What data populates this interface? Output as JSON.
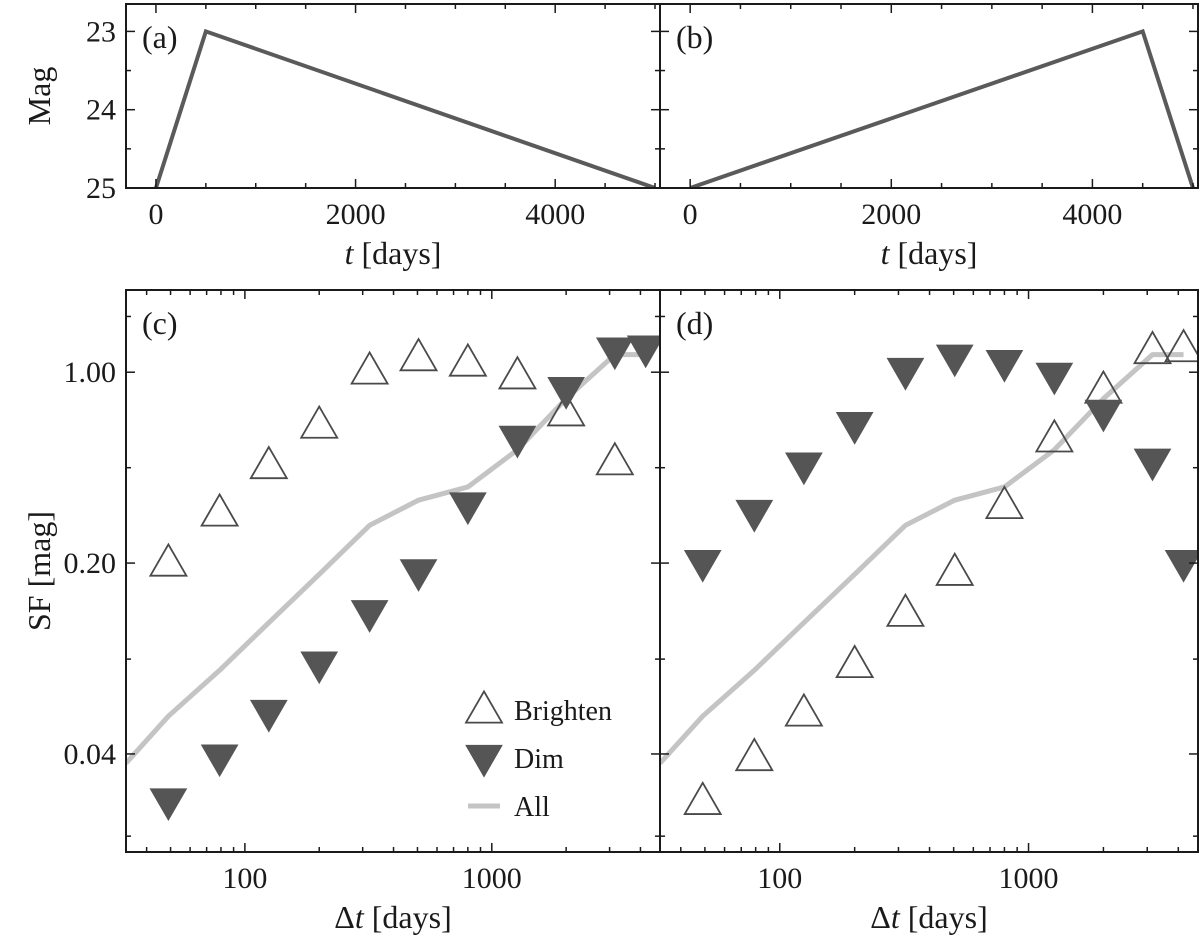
{
  "colors": {
    "curve": "#5a5a5a",
    "all_line": "#c4c4c4",
    "marker_edge": "#4a4a4a",
    "dim_fill": "#555555",
    "axis": "#1a1a1a"
  },
  "legend_position": "lower-right",
  "chart_data": [
    {
      "id": "a",
      "type": "line",
      "panel_label": "(a)",
      "xlabel_var": "t",
      "xlabel_unit": " [days]",
      "ylabel": "Mag",
      "xlim": [
        -300,
        5050
      ],
      "ylim": [
        25,
        22.65
      ],
      "y_inverted": true,
      "xticks": [
        0,
        2000,
        4000
      ],
      "xtick_labels": [
        "0",
        "2000",
        "4000"
      ],
      "yticks": [
        23,
        24,
        25
      ],
      "ytick_labels": [
        "23",
        "24",
        "25"
      ],
      "series": [
        {
          "x": [
            0,
            500,
            5000
          ],
          "y": [
            25,
            23,
            25
          ]
        }
      ]
    },
    {
      "id": "b",
      "type": "line",
      "panel_label": "(b)",
      "xlabel_var": "t",
      "xlabel_unit": " [days]",
      "xlim": [
        -300,
        5050
      ],
      "ylim": [
        25,
        22.65
      ],
      "y_inverted": true,
      "xticks": [
        0,
        2000,
        4000
      ],
      "xtick_labels": [
        "0",
        "2000",
        "4000"
      ],
      "series": [
        {
          "x": [
            0,
            4500,
            5000
          ],
          "y": [
            25,
            23,
            25
          ]
        }
      ]
    },
    {
      "id": "c",
      "type": "scatter",
      "panel_label": "(c)",
      "xlabel_var": "Δt",
      "xlabel_unit": " [days]",
      "ylabel": "SF [mag]",
      "xscale": "log",
      "yscale": "log",
      "xlim": [
        33,
        4800
      ],
      "ylim": [
        0.0175,
        2.0
      ],
      "xticks": [
        100,
        1000
      ],
      "xtick_labels": [
        "100",
        "1000"
      ],
      "yticks": [
        0.04,
        0.2,
        1.0
      ],
      "ytick_labels": [
        "0.04",
        "0.20",
        "1.00"
      ],
      "series": [
        {
          "name": "Brighten",
          "marker": "triangle-up-open",
          "x": [
            49,
            79,
            125,
            200,
            320,
            505,
            800,
            1270,
            2000,
            3150
          ],
          "y": [
            0.2,
            0.305,
            0.455,
            0.64,
            1.01,
            1.13,
            1.08,
            0.97,
            0.71,
            0.47
          ]
        },
        {
          "name": "Dim",
          "marker": "triangle-down-filled",
          "x": [
            49,
            79,
            125,
            200,
            320,
            505,
            800,
            1270,
            2000,
            3150,
            4200
          ],
          "y": [
            0.0268,
            0.0388,
            0.0565,
            0.085,
            0.131,
            0.185,
            0.325,
            0.57,
            0.86,
            1.2,
            1.22
          ]
        },
        {
          "name": "All",
          "marker": "line",
          "x": [
            33,
            49,
            79,
            125,
            200,
            320,
            505,
            800,
            1270,
            2000,
            3150,
            4200
          ],
          "y": [
            0.037,
            0.055,
            0.081,
            0.121,
            0.182,
            0.275,
            0.34,
            0.38,
            0.52,
            0.8,
            1.16,
            1.16
          ]
        }
      ]
    },
    {
      "id": "d",
      "type": "scatter",
      "panel_label": "(d)",
      "xlabel_var": "Δt",
      "xlabel_unit": " [days]",
      "xscale": "log",
      "yscale": "log",
      "xlim": [
        33,
        4800
      ],
      "ylim": [
        0.0175,
        2.0
      ],
      "xticks": [
        100,
        1000
      ],
      "xtick_labels": [
        "100",
        "1000"
      ],
      "series": [
        {
          "name": "Brighten",
          "marker": "triangle-up-open",
          "x": [
            49,
            79,
            125,
            200,
            320,
            505,
            800,
            1270,
            2000,
            3150,
            4200
          ],
          "y": [
            0.0268,
            0.0388,
            0.0565,
            0.085,
            0.131,
            0.185,
            0.325,
            0.57,
            0.86,
            1.2,
            1.22
          ]
        },
        {
          "name": "Dim",
          "marker": "triangle-down-filled",
          "x": [
            49,
            79,
            125,
            200,
            320,
            505,
            800,
            1270,
            2000,
            3150,
            4200
          ],
          "y": [
            0.2,
            0.305,
            0.455,
            0.64,
            1.01,
            1.13,
            1.08,
            0.97,
            0.71,
            0.47,
            0.2
          ]
        },
        {
          "name": "All",
          "marker": "line",
          "x": [
            33,
            49,
            79,
            125,
            200,
            320,
            505,
            800,
            1270,
            2000,
            3150,
            4200
          ],
          "y": [
            0.037,
            0.055,
            0.081,
            0.121,
            0.182,
            0.275,
            0.34,
            0.38,
            0.52,
            0.8,
            1.16,
            1.16
          ]
        }
      ]
    }
  ]
}
